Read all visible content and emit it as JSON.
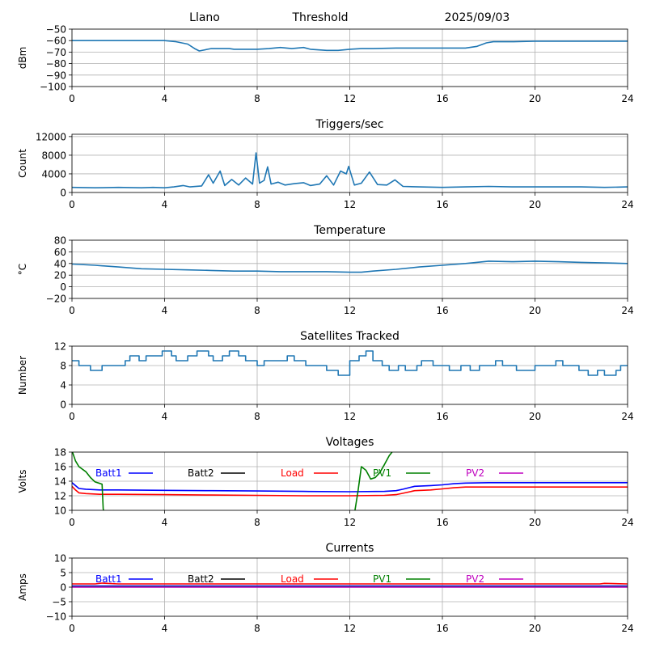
{
  "header": {
    "site": "Llano",
    "mode": "Threshold",
    "date": "2025/09/03"
  },
  "chart_data": [
    {
      "id": "signal",
      "type": "line",
      "title": "",
      "ylabel": "dBm",
      "xlim": [
        0,
        24
      ],
      "ylim": [
        -100,
        -50
      ],
      "xticks": [
        0,
        4,
        8,
        12,
        16,
        20,
        24
      ],
      "yticks": [
        -100,
        -90,
        -80,
        -70,
        -60,
        -50
      ],
      "grid": true,
      "series": [
        {
          "color": "#1f77b4",
          "x": [
            0,
            4,
            4.5,
            5,
            5.3,
            5.5,
            6,
            6.8,
            7,
            8,
            8.5,
            9,
            9.5,
            10,
            10.3,
            11,
            11.5,
            12,
            12.5,
            13,
            14,
            15,
            16,
            17,
            17.5,
            17.9,
            18.2,
            19,
            20,
            22,
            24
          ],
          "y": [
            -60,
            -60,
            -61,
            -63,
            -67,
            -69,
            -67,
            -67,
            -67.5,
            -67.5,
            -67,
            -66,
            -67,
            -66,
            -67.5,
            -68.5,
            -68.5,
            -67.5,
            -67,
            -67,
            -66.5,
            -66.5,
            -66.5,
            -66.5,
            -65,
            -62,
            -61,
            -61,
            -60.5,
            -60.5,
            -60.5
          ]
        }
      ]
    },
    {
      "id": "triggers",
      "type": "line",
      "title": "Triggers/sec",
      "ylabel": "Count",
      "xlim": [
        0,
        24
      ],
      "ylim": [
        0,
        12500
      ],
      "xticks": [
        0,
        4,
        8,
        12,
        16,
        20,
        24
      ],
      "yticks": [
        0,
        4000,
        8000,
        12000
      ],
      "grid": true,
      "series": [
        {
          "color": "#1f77b4",
          "x": [
            0,
            1,
            2,
            3,
            3.5,
            4,
            4.4,
            4.8,
            5.1,
            5.6,
            5.9,
            6.1,
            6.4,
            6.6,
            6.9,
            7.2,
            7.5,
            7.8,
            7.95,
            8.1,
            8.3,
            8.45,
            8.6,
            8.9,
            9.2,
            9.6,
            10.0,
            10.3,
            10.7,
            11.0,
            11.3,
            11.6,
            11.85,
            11.95,
            12.2,
            12.5,
            12.85,
            13.2,
            13.6,
            13.95,
            14.3,
            15,
            16,
            17,
            18,
            19,
            20,
            21,
            22,
            23,
            24
          ],
          "y": [
            1100,
            1000,
            1100,
            1000,
            1100,
            1000,
            1200,
            1500,
            1200,
            1400,
            3800,
            2000,
            4600,
            1500,
            2800,
            1600,
            3100,
            1800,
            8500,
            2000,
            2600,
            5500,
            1800,
            2200,
            1600,
            1900,
            2100,
            1500,
            1800,
            3600,
            1600,
            4600,
            4000,
            5600,
            1600,
            2000,
            4400,
            1700,
            1600,
            2700,
            1300,
            1200,
            1100,
            1200,
            1300,
            1200,
            1200,
            1200,
            1200,
            1100,
            1200
          ]
        }
      ]
    },
    {
      "id": "temperature",
      "type": "line",
      "title": "Temperature",
      "ylabel": "°C",
      "xlim": [
        0,
        24
      ],
      "ylim": [
        -20,
        80
      ],
      "xticks": [
        0,
        4,
        8,
        12,
        16,
        20,
        24
      ],
      "yticks": [
        -20,
        0,
        20,
        40,
        60,
        80
      ],
      "grid": true,
      "series": [
        {
          "color": "#1f77b4",
          "x": [
            0,
            1,
            2,
            3,
            4,
            5,
            6,
            7,
            8,
            9,
            10,
            11,
            12,
            12.5,
            13,
            14,
            15,
            16,
            17,
            18,
            19,
            20,
            21,
            22,
            23,
            24
          ],
          "y": [
            39,
            37,
            34,
            31,
            30,
            29,
            28,
            27,
            27,
            26,
            26,
            26,
            25,
            25,
            27,
            30,
            34,
            37,
            40,
            44,
            43,
            44,
            43,
            42,
            41,
            40
          ]
        }
      ]
    },
    {
      "id": "satellites",
      "type": "line",
      "title": "Satellites Tracked",
      "ylabel": "Number",
      "xlim": [
        0,
        24
      ],
      "ylim": [
        0,
        12
      ],
      "xticks": [
        0,
        4,
        8,
        12,
        16,
        20,
        24
      ],
      "yticks": [
        0,
        4,
        8,
        12
      ],
      "grid": true,
      "series": [
        {
          "color": "#1f77b4",
          "step": true,
          "x": [
            0,
            0.3,
            0.8,
            1.3,
            1.7,
            2.3,
            2.5,
            2.9,
            3.2,
            3.6,
            3.9,
            4.3,
            4.5,
            5.0,
            5.4,
            5.9,
            6.1,
            6.5,
            6.8,
            7.2,
            7.5,
            8.0,
            8.3,
            8.9,
            9.3,
            9.6,
            10.1,
            10.6,
            11.0,
            11.5,
            12.0,
            12.4,
            12.7,
            13.0,
            13.4,
            13.7,
            14.1,
            14.4,
            14.9,
            15.1,
            15.6,
            15.9,
            16.3,
            16.8,
            17.2,
            17.6,
            18.3,
            18.6,
            19.2,
            19.6,
            20.0,
            20.5,
            20.9,
            21.2,
            21.9,
            22.3,
            22.7,
            23.0,
            23.5,
            23.7
          ],
          "y": [
            9,
            8,
            7,
            8,
            8,
            9,
            10,
            9,
            10,
            10,
            11,
            10,
            9,
            10,
            11,
            10,
            9,
            10,
            11,
            10,
            9,
            8,
            9,
            9,
            10,
            9,
            8,
            8,
            7,
            6,
            9,
            10,
            11,
            9,
            8,
            7,
            8,
            7,
            8,
            9,
            8,
            8,
            7,
            8,
            7,
            8,
            9,
            8,
            7,
            7,
            8,
            8,
            9,
            8,
            7,
            6,
            7,
            6,
            7,
            8
          ]
        }
      ]
    },
    {
      "id": "voltages",
      "type": "line",
      "title": "Voltages",
      "ylabel": "Volts",
      "xlim": [
        0,
        24
      ],
      "ylim": [
        10,
        18
      ],
      "xticks": [
        0,
        4,
        8,
        12,
        16,
        20,
        24
      ],
      "yticks": [
        10,
        12,
        14,
        16,
        18
      ],
      "grid": true,
      "legend": "top",
      "series": [
        {
          "name": "Batt1",
          "color": "#0000ff",
          "x": [
            0,
            0.15,
            0.3,
            0.6,
            1.2,
            2,
            4,
            6,
            8,
            10,
            12,
            13.5,
            14,
            14.3,
            14.8,
            15.5,
            16,
            16.5,
            17,
            18,
            20,
            22,
            24
          ],
          "y": [
            13.8,
            13.4,
            13.0,
            12.9,
            12.8,
            12.8,
            12.75,
            12.7,
            12.65,
            12.6,
            12.55,
            12.6,
            12.7,
            12.9,
            13.3,
            13.4,
            13.5,
            13.65,
            13.75,
            13.8,
            13.8,
            13.8,
            13.8
          ]
        },
        {
          "name": "Batt2",
          "color": "#000000",
          "x": [],
          "y": []
        },
        {
          "name": "Load",
          "color": "#ff0000",
          "x": [
            0,
            0.15,
            0.3,
            0.6,
            1.2,
            2,
            4,
            6,
            8,
            10,
            12,
            13.5,
            14,
            14.3,
            14.8,
            15.5,
            16,
            16.5,
            17,
            18,
            20,
            22,
            24
          ],
          "y": [
            13.3,
            12.8,
            12.4,
            12.3,
            12.2,
            12.2,
            12.15,
            12.1,
            12.05,
            12.0,
            12.0,
            12.05,
            12.15,
            12.35,
            12.7,
            12.8,
            12.95,
            13.1,
            13.2,
            13.2,
            13.2,
            13.2,
            13.2
          ]
        },
        {
          "name": "PV1",
          "color": "#008000",
          "x": [
            0,
            0.15,
            0.3,
            0.6,
            0.8,
            1.0,
            1.2,
            1.3,
            1.35,
            1.4,
            null,
            12.2,
            12.35,
            12.5,
            12.7,
            12.9,
            13.1,
            13.3,
            13.5,
            13.7,
            13.9
          ],
          "y": [
            18.2,
            16.8,
            16.0,
            15.3,
            14.5,
            13.9,
            13.7,
            13.6,
            10.2,
            9.5,
            null,
            9.5,
            12.5,
            16.0,
            15.5,
            14.3,
            14.5,
            15.2,
            16.3,
            17.5,
            18.3
          ]
        },
        {
          "name": "PV2",
          "color": "#bf00bf",
          "x": [],
          "y": []
        }
      ]
    },
    {
      "id": "currents",
      "type": "line",
      "title": "Currents",
      "ylabel": "Amps",
      "xlim": [
        0,
        24
      ],
      "ylim": [
        -10,
        10
      ],
      "xticks": [
        0,
        4,
        8,
        12,
        16,
        20,
        24
      ],
      "yticks": [
        -10,
        -5,
        0,
        5,
        10
      ],
      "grid": true,
      "legend": "top",
      "series": [
        {
          "name": "Batt1",
          "color": "#0000ff",
          "x": [
            0,
            24
          ],
          "y": [
            0.4,
            0.4
          ]
        },
        {
          "name": "Batt2",
          "color": "#000000",
          "x": [],
          "y": []
        },
        {
          "name": "Load",
          "color": "#ff0000",
          "x": [
            0,
            1,
            1.3,
            2,
            4,
            8,
            12,
            16,
            20,
            22.8,
            23,
            24
          ],
          "y": [
            1.1,
            1.1,
            1.4,
            1.1,
            1.1,
            1.1,
            1.1,
            1.1,
            1.1,
            1.1,
            1.3,
            1.1
          ]
        },
        {
          "name": "PV1",
          "color": "#008000",
          "x": [
            0,
            24
          ],
          "y": [
            0.1,
            0.1
          ]
        },
        {
          "name": "PV2",
          "color": "#bf00bf",
          "x": [
            0,
            24
          ],
          "y": [
            0.0,
            0.0
          ]
        }
      ]
    }
  ]
}
